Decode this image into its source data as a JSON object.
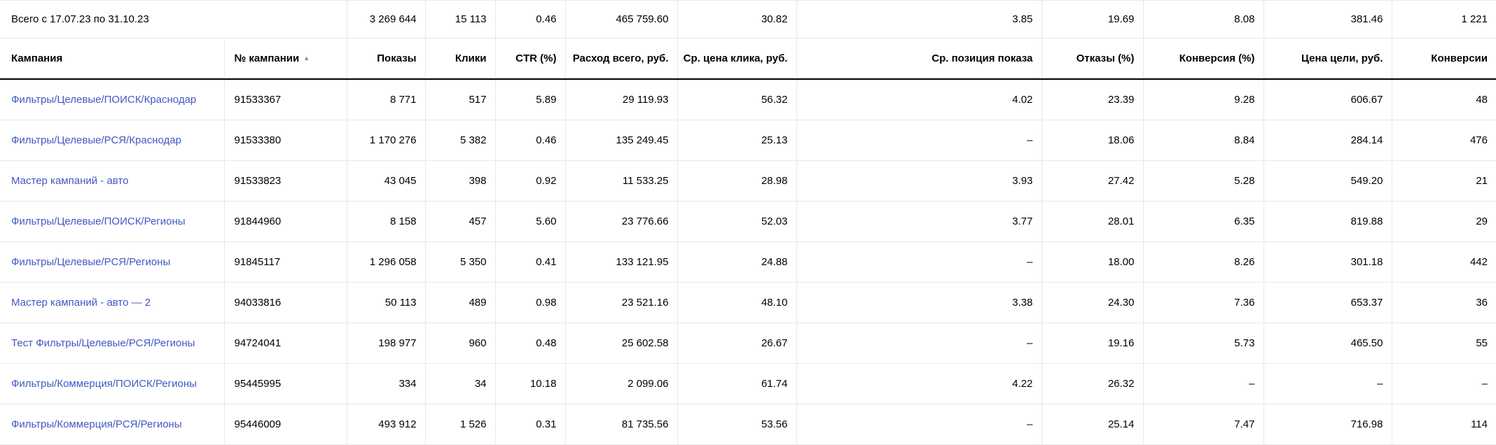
{
  "table": {
    "title": "campaign-statistics",
    "colors": {
      "link": "#4259c2",
      "grid": "#e8e8e8",
      "header_divider": "#000000",
      "sort_icon": "#8c8c8c",
      "text": "#000000"
    },
    "totals": {
      "label": "Всего с 17.07.23 по 31.10.23",
      "values": [
        "3 269 644",
        "15 113",
        "0.46",
        "465 759.60",
        "30.82",
        "3.85",
        "19.69",
        "8.08",
        "381.46",
        "1 221"
      ]
    },
    "columns": [
      {
        "label": "Кампания"
      },
      {
        "label": "№ кампании",
        "sort_icon": "▲",
        "sort": "asc"
      },
      {
        "label": "Показы"
      },
      {
        "label": "Клики"
      },
      {
        "label": "CTR (%)"
      },
      {
        "label": "Расход всего, руб."
      },
      {
        "label": "Ср. цена клика, руб."
      },
      {
        "label": "Ср. позиция показа"
      },
      {
        "label": "Отказы (%)"
      },
      {
        "label": "Конверсия (%)"
      },
      {
        "label": "Цена цели, руб."
      },
      {
        "label": "Конверсии"
      }
    ],
    "rows": [
      {
        "name": "Фильтры/Целевые/ПОИСК/Краснодар",
        "id": "91533367",
        "values": [
          "8 771",
          "517",
          "5.89",
          "29 119.93",
          "56.32",
          "4.02",
          "23.39",
          "9.28",
          "606.67",
          "48"
        ]
      },
      {
        "name": "Фильтры/Целевые/РСЯ/Краснодар",
        "id": "91533380",
        "values": [
          "1 170 276",
          "5 382",
          "0.46",
          "135 249.45",
          "25.13",
          "–",
          "18.06",
          "8.84",
          "284.14",
          "476"
        ]
      },
      {
        "name": "Мастер кампаний - авто",
        "id": "91533823",
        "values": [
          "43 045",
          "398",
          "0.92",
          "11 533.25",
          "28.98",
          "3.93",
          "27.42",
          "5.28",
          "549.20",
          "21"
        ]
      },
      {
        "name": "Фильтры/Целевые/ПОИСК/Регионы",
        "id": "91844960",
        "values": [
          "8 158",
          "457",
          "5.60",
          "23 776.66",
          "52.03",
          "3.77",
          "28.01",
          "6.35",
          "819.88",
          "29"
        ]
      },
      {
        "name": "Фильтры/Целевые/РСЯ/Регионы",
        "id": "91845117",
        "values": [
          "1 296 058",
          "5 350",
          "0.41",
          "133 121.95",
          "24.88",
          "–",
          "18.00",
          "8.26",
          "301.18",
          "442"
        ]
      },
      {
        "name": "Мастер кампаний - авто — 2",
        "id": "94033816",
        "values": [
          "50 113",
          "489",
          "0.98",
          "23 521.16",
          "48.10",
          "3.38",
          "24.30",
          "7.36",
          "653.37",
          "36"
        ]
      },
      {
        "name": "Тест Фильтры/Целевые/РСЯ/Регионы",
        "id": "94724041",
        "values": [
          "198 977",
          "960",
          "0.48",
          "25 602.58",
          "26.67",
          "–",
          "19.16",
          "5.73",
          "465.50",
          "55"
        ]
      },
      {
        "name": "Фильтры/Коммерция/ПОИСК/Регионы",
        "id": "95445995",
        "values": [
          "334",
          "34",
          "10.18",
          "2 099.06",
          "61.74",
          "4.22",
          "26.32",
          "–",
          "–",
          "–"
        ]
      },
      {
        "name": "Фильтры/Коммерция/РСЯ/Регионы",
        "id": "95446009",
        "values": [
          "493 912",
          "1 526",
          "0.31",
          "81 735.56",
          "53.56",
          "–",
          "25.14",
          "7.47",
          "716.98",
          "114"
        ]
      }
    ]
  }
}
